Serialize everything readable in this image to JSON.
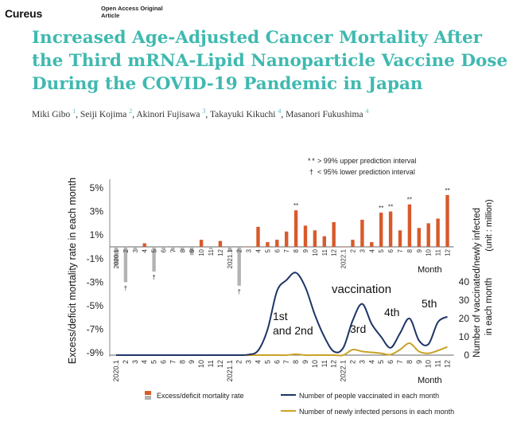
{
  "journal": {
    "logo": "Cureus",
    "access_line": "Open Access Original",
    "type_line": "Article"
  },
  "article": {
    "title_lines": [
      "Increased Age-Adjusted Cancer Mortality After",
      "the Third mRNA-Lipid Nanoparticle Vaccine Dose",
      "During the COVID-19 Pandemic in Japan"
    ],
    "authors": [
      {
        "name": "Miki Gibo",
        "aff": "1"
      },
      {
        "name": "Seiji Kojima",
        "aff": "2"
      },
      {
        "name": "Akinori Fujisawa",
        "aff": "3"
      },
      {
        "name": "Takayuki Kikuchi",
        "aff": "4"
      },
      {
        "name": "Masanori Fukushima",
        "aff": "4"
      }
    ]
  },
  "chart_data": {
    "type": "bar+line",
    "months": [
      "2020.1",
      "2",
      "3",
      "4",
      "5",
      "6",
      "7",
      "8",
      "9",
      "10",
      "11",
      "12",
      "2021.1",
      "2",
      "3",
      "4",
      "5",
      "6",
      "7",
      "8",
      "9",
      "10",
      "11",
      "12",
      "2022.1",
      "2",
      "3",
      "4",
      "5",
      "6",
      "7",
      "8",
      "9",
      "10",
      "11",
      "12"
    ],
    "top_month_labels": [
      "2020.1",
      "2",
      "3",
      "4",
      "5",
      "6",
      "7",
      "8",
      "9",
      "10",
      "11",
      "12",
      "2021.1",
      "2",
      "3",
      "4",
      "5",
      "6",
      "7",
      "8",
      "9",
      "10",
      "11",
      "12",
      "2022.1",
      "2",
      "3",
      "4",
      "5",
      "6",
      "7",
      "8",
      "9",
      "10",
      "11",
      "12"
    ],
    "excess_mortality_pct": [
      -1.6,
      -3.0,
      -0.2,
      0.3,
      -2.1,
      -0.2,
      -0.3,
      -0.3,
      -0.7,
      0.6,
      -0.2,
      0.5,
      -0.4,
      -3.3,
      0.0,
      1.7,
      0.4,
      0.6,
      1.3,
      3.1,
      1.8,
      1.4,
      0.9,
      2.1,
      0.0,
      0.6,
      2.3,
      0.4,
      2.9,
      3.0,
      1.4,
      3.6,
      1.6,
      2.0,
      2.4,
      4.4
    ],
    "upper_pi_markers": [
      "2021.8",
      "2022.5",
      "2022.6",
      "2022.8",
      "2022.12"
    ],
    "lower_pi_markers": [
      "2020.2",
      "2020.5",
      "2021.2"
    ],
    "vaccinated_millions": [
      0,
      0,
      0,
      0,
      0,
      0,
      0,
      0,
      0,
      0,
      0,
      0,
      0,
      0,
      0.3,
      2.5,
      14,
      35,
      41,
      45,
      37,
      22,
      10,
      2,
      4,
      19,
      28,
      17,
      10,
      4,
      12,
      20,
      8,
      6,
      18,
      21
    ],
    "infected_millions": [
      0,
      0,
      0,
      0,
      0,
      0,
      0,
      0,
      0,
      0,
      0,
      0,
      0,
      0,
      0,
      0,
      0,
      0,
      0,
      0.5,
      0,
      0,
      0,
      0,
      0,
      3,
      2,
      1.5,
      1,
      0.3,
      3,
      6.5,
      2,
      1,
      2.5,
      4.5
    ],
    "y_left_ticks": [
      "5%",
      "3%",
      "1%",
      "-1%",
      "-3%",
      "-5%",
      "-7%",
      "-9%"
    ],
    "y_left_range": [
      -9,
      5
    ],
    "y_right_ticks": [
      "40",
      "30",
      "20",
      "10",
      "0"
    ],
    "y_right_range": [
      0,
      50
    ],
    "y_left_label": "Excess/deficit mortality rate in each month",
    "y_right_label_1": "Number of vaccinated/newly infected",
    "y_right_label_2": "in each month",
    "y_right_unit": "(unit : million)",
    "x_label": "Month",
    "annotations": {
      "vaccination": "vaccination",
      "first_1": "1st",
      "first_2": "and 2nd",
      "third": "3rd",
      "fourth": "4th",
      "fifth": "5th"
    },
    "pi_legend": {
      "upper_symbol": "* *",
      "upper": "> 99% upper prediction interval",
      "lower_symbol": "†",
      "lower": "< 95% lower prediction interval"
    },
    "legend": {
      "bar_label": "Excess/deficit mortality rate",
      "vacc_label": "Number of people vaccinated in each month",
      "inf_label": "Number of newly infected persons in each month"
    },
    "colors": {
      "bar_pos": "#d85a2a",
      "bar_neg": "#b3b3b3",
      "vaccinated": "#1f3566",
      "infected": "#c9a227",
      "title": "#3fb9b0"
    }
  }
}
